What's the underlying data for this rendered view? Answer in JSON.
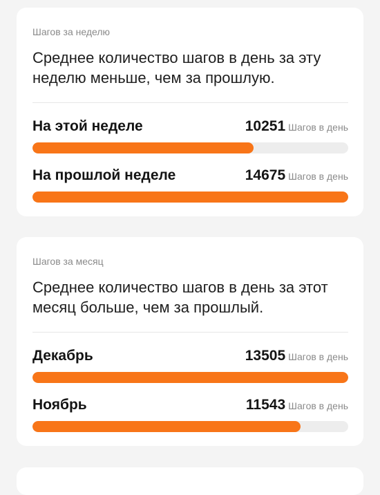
{
  "colors": {
    "accent": "#f87518",
    "track": "#ededed"
  },
  "cards": [
    {
      "label": "Шагов за неделю",
      "description": "Среднее количество шагов в день за эту неделю меньше, чем за прошлую.",
      "rows": [
        {
          "name": "На этой неделе",
          "value": "10251",
          "unit": "Шагов в день",
          "progress": 0.7
        },
        {
          "name": "На прошлой неделе",
          "value": "14675",
          "unit": "Шагов в день",
          "progress": 1.0
        }
      ]
    },
    {
      "label": "Шагов за месяц",
      "description": "Среднее количество шагов в день за этот месяц больше, чем за прошлый.",
      "rows": [
        {
          "name": "Декабрь",
          "value": "13505",
          "unit": "Шагов в день",
          "progress": 1.0
        },
        {
          "name": "Ноябрь",
          "value": "11543",
          "unit": "Шагов в день",
          "progress": 0.85
        }
      ]
    }
  ]
}
